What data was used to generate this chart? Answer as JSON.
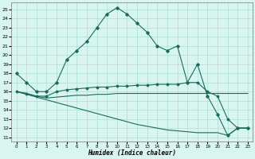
{
  "xlabel": "Humidex (Indice chaleur)",
  "ylabel": "",
  "xlim": [
    -0.5,
    23.5
  ],
  "ylim": [
    10.5,
    25.8
  ],
  "yticks": [
    11,
    12,
    13,
    14,
    15,
    16,
    17,
    18,
    19,
    20,
    21,
    22,
    23,
    24,
    25
  ],
  "xticks": [
    0,
    1,
    2,
    3,
    4,
    5,
    6,
    7,
    8,
    9,
    10,
    11,
    12,
    13,
    14,
    15,
    16,
    17,
    18,
    19,
    20,
    21,
    22,
    23
  ],
  "bg_color": "#d8f5f0",
  "grid_color": "#aaddd6",
  "line_color": "#1a6b5a",
  "line1_x": [
    0,
    1,
    2,
    3,
    4,
    5,
    6,
    7,
    8,
    9,
    10,
    11,
    12,
    13,
    14,
    15,
    16,
    17,
    18,
    19,
    20,
    21,
    22,
    23
  ],
  "line1_y": [
    18,
    17,
    16,
    16,
    17,
    19.5,
    20.5,
    21.5,
    23,
    24.5,
    25.2,
    24.5,
    23.5,
    22.5,
    21,
    20.5,
    21,
    17,
    19,
    15.5,
    13.5,
    11.2,
    12,
    12
  ],
  "line2_x": [
    0,
    1,
    2,
    3,
    4,
    5,
    6,
    7,
    8,
    9,
    10,
    11,
    12,
    13,
    14,
    15,
    16,
    17,
    18,
    19,
    20,
    21,
    22,
    23
  ],
  "line2_y": [
    16,
    15.8,
    15.5,
    15.5,
    16,
    16.2,
    16.3,
    16.4,
    16.5,
    16.5,
    16.6,
    16.6,
    16.7,
    16.7,
    16.8,
    16.8,
    16.8,
    17,
    17,
    16,
    15.5,
    13,
    12,
    12
  ],
  "line3_x": [
    0,
    1,
    2,
    3,
    4,
    5,
    6,
    7,
    8,
    9,
    10,
    11,
    12,
    13,
    14,
    15,
    16,
    17,
    18,
    19,
    20,
    21,
    22,
    23
  ],
  "line3_y": [
    16,
    15.8,
    15.5,
    15.3,
    15.4,
    15.5,
    15.6,
    15.6,
    15.7,
    15.7,
    15.8,
    15.8,
    15.8,
    15.8,
    15.8,
    15.8,
    15.8,
    15.8,
    15.8,
    15.8,
    15.8,
    15.8,
    15.8,
    15.8
  ],
  "line4_x": [
    0,
    1,
    2,
    3,
    4,
    5,
    6,
    7,
    8,
    9,
    10,
    11,
    12,
    13,
    14,
    15,
    16,
    17,
    18,
    19,
    20,
    21,
    22,
    23
  ],
  "line4_y": [
    16,
    15.7,
    15.4,
    15.1,
    14.8,
    14.5,
    14.2,
    13.9,
    13.6,
    13.3,
    13.0,
    12.7,
    12.4,
    12.2,
    12.0,
    11.8,
    11.7,
    11.6,
    11.5,
    11.5,
    11.5,
    11.2,
    12,
    12
  ]
}
